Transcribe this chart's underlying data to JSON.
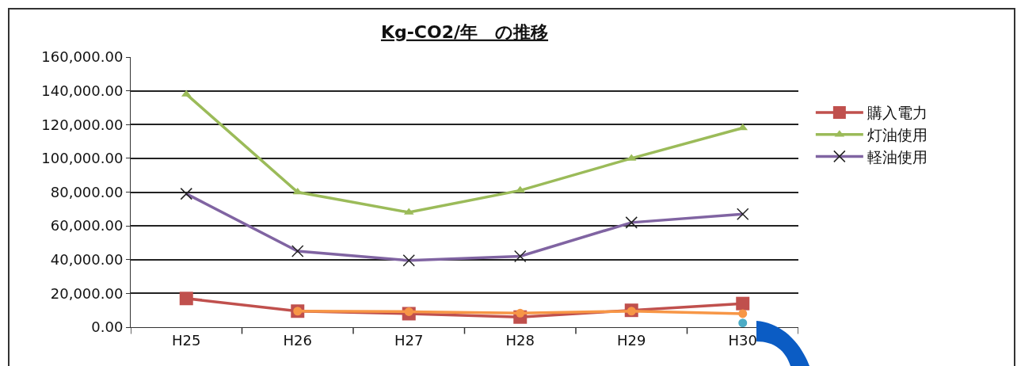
{
  "chart_data": {
    "type": "line",
    "title": "Kg-CO2/年　の推移",
    "categories": [
      "H25",
      "H26",
      "H27",
      "H28",
      "H29",
      "H30"
    ],
    "series": [
      {
        "name": "購入電力",
        "color": "#c0504d",
        "marker": "square",
        "values": [
          17000,
          9500,
          8000,
          6000,
          10000,
          14000
        ]
      },
      {
        "name": "灯油使用",
        "color": "#9bbb59",
        "marker": "triangle",
        "values": [
          138000,
          80000,
          68000,
          81000,
          100000,
          118000
        ]
      },
      {
        "name": "軽油使用",
        "color": "#8064a2",
        "marker": "cross",
        "values": [
          79000,
          45000,
          39500,
          42000,
          62000,
          67000
        ]
      },
      {
        "color": "#f79646",
        "marker": "circle",
        "values": [
          null,
          9500,
          9200,
          8300,
          9500,
          8000
        ]
      },
      {
        "color": "#4bacc6",
        "marker": "circle",
        "values": [
          null,
          null,
          null,
          null,
          null,
          2500
        ]
      }
    ],
    "ylim": [
      0,
      160000
    ],
    "yticks": [
      {
        "value": 0,
        "label": "0.00"
      },
      {
        "value": 20000,
        "label": "20,000.00"
      },
      {
        "value": 40000,
        "label": "40,000.00"
      },
      {
        "value": 60000,
        "label": "60,000.00"
      },
      {
        "value": 80000,
        "label": "80,000.00"
      },
      {
        "value": 100000,
        "label": "100,000.00"
      },
      {
        "value": 120000,
        "label": "120,000.00"
      },
      {
        "value": 140000,
        "label": "140,000.00"
      },
      {
        "value": 160000,
        "label": "160,000.00"
      }
    ],
    "grid": "y",
    "legend": "right",
    "line_style": "solid"
  }
}
